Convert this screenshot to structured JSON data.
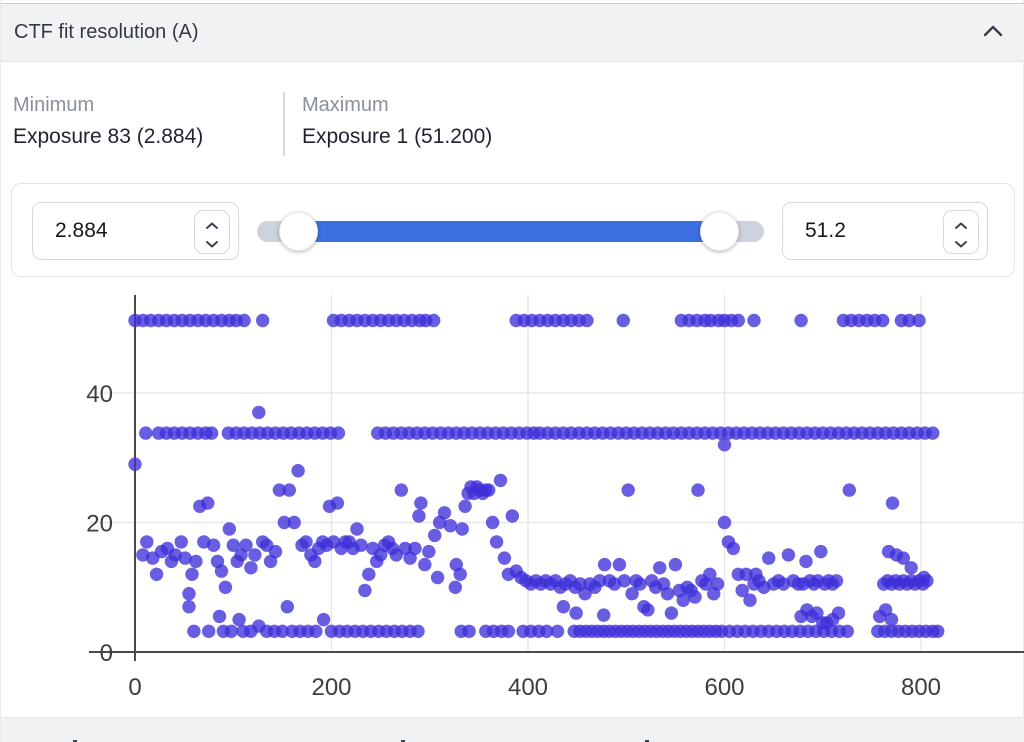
{
  "panel": {
    "title": "CTF fit resolution (A)",
    "collapse_icon": "chevron-up-icon"
  },
  "stats": {
    "min_label": "Minimum",
    "min_value": "Exposure 83 (2.884)",
    "max_label": "Maximum",
    "max_value": "Exposure 1 (51.200)"
  },
  "slider": {
    "min_input": "2.884",
    "max_input": "51.2"
  },
  "colors": {
    "accent_blue": "#3d6fe3",
    "marker": "#3f30d8",
    "header_bg": "#f1f2f4",
    "axis": "#4a4a4a",
    "gridline": "#e7e8ea"
  },
  "chart_data": {
    "type": "scatter",
    "title": "",
    "xlabel": "",
    "ylabel": "",
    "x_ticks": [
      0,
      200,
      400,
      600,
      800
    ],
    "y_ticks": [
      0,
      20,
      40
    ],
    "xlim": [
      -45,
      905
    ],
    "ylim": [
      0,
      55
    ],
    "grid": true,
    "marker_color": "#3f30d8",
    "marker_opacity": 0.78,
    "top_row_y": 51.2,
    "top_row_x": [
      0,
      8,
      16,
      24,
      32,
      40,
      48,
      56,
      64,
      72,
      80,
      88,
      96,
      103,
      111,
      130,
      202,
      210,
      218,
      226,
      234,
      242,
      250,
      258,
      266,
      274,
      282,
      290,
      296,
      304,
      388,
      396,
      404,
      412,
      420,
      428,
      436,
      444,
      452,
      460,
      497,
      556,
      564,
      572,
      580,
      586,
      594,
      600,
      607,
      614,
      630,
      678,
      721,
      729,
      737,
      745,
      753,
      761,
      780,
      788,
      798
    ],
    "mid_row_y": 33.8,
    "mid_row_x": [
      11,
      24,
      32,
      40,
      48,
      56,
      64,
      72,
      78,
      95,
      103,
      111,
      119,
      127,
      135,
      143,
      151,
      159,
      167,
      175,
      183,
      191,
      199,
      207,
      247,
      255,
      263,
      271,
      279,
      287,
      295,
      303,
      311,
      319,
      327,
      335,
      343,
      351,
      359,
      367,
      375,
      383,
      391,
      399,
      406,
      412,
      420,
      428,
      436,
      444,
      452,
      460,
      468,
      476,
      484,
      492,
      500,
      508,
      516,
      524,
      532,
      540,
      548,
      556,
      564,
      572,
      580,
      588,
      596,
      604,
      612,
      620,
      628,
      636,
      644,
      652,
      660,
      668,
      676,
      684,
      692,
      700,
      708,
      716,
      724,
      732,
      740,
      748,
      756,
      764,
      772,
      780,
      788,
      796,
      804,
      812
    ],
    "points": [
      [
        0,
        29
      ],
      [
        126,
        37
      ],
      [
        600,
        32
      ],
      [
        8,
        15
      ],
      [
        12,
        17
      ],
      [
        18,
        14.5
      ],
      [
        22,
        12
      ],
      [
        27,
        15.5
      ],
      [
        33,
        16
      ],
      [
        37,
        14
      ],
      [
        41,
        15
      ],
      [
        47,
        17
      ],
      [
        51,
        14.5
      ],
      [
        55,
        9
      ],
      [
        58,
        12
      ],
      [
        62,
        14
      ],
      [
        66,
        22.5
      ],
      [
        70,
        17
      ],
      [
        74,
        23
      ],
      [
        80,
        16.5
      ],
      [
        84,
        14
      ],
      [
        88,
        12.5
      ],
      [
        92,
        10
      ],
      [
        96,
        19
      ],
      [
        100,
        16.5
      ],
      [
        104,
        14
      ],
      [
        108,
        15
      ],
      [
        113,
        16.5
      ],
      [
        118,
        13
      ],
      [
        122,
        15
      ],
      [
        130,
        17
      ],
      [
        134,
        16.5
      ],
      [
        138,
        14
      ],
      [
        143,
        15.5
      ],
      [
        147,
        25
      ],
      [
        152,
        20
      ],
      [
        157,
        25
      ],
      [
        162,
        20
      ],
      [
        166,
        28
      ],
      [
        170,
        16.5
      ],
      [
        174,
        17
      ],
      [
        179,
        15
      ],
      [
        183,
        14
      ],
      [
        187,
        16
      ],
      [
        191,
        17
      ],
      [
        195,
        16.5
      ],
      [
        198,
        22.5
      ],
      [
        202,
        17
      ],
      [
        206,
        23
      ],
      [
        210,
        16
      ],
      [
        214,
        17
      ],
      [
        218,
        17
      ],
      [
        222,
        16
      ],
      [
        226,
        19
      ],
      [
        230,
        16.5
      ],
      [
        234,
        9.5
      ],
      [
        238,
        12
      ],
      [
        242,
        16
      ],
      [
        246,
        14
      ],
      [
        250,
        15
      ],
      [
        254,
        16.5
      ],
      [
        258,
        17
      ],
      [
        262,
        16
      ],
      [
        266,
        15
      ],
      [
        271,
        25
      ],
      [
        275,
        16
      ],
      [
        280,
        14.5
      ],
      [
        285,
        16
      ],
      [
        289,
        21
      ],
      [
        55,
        7
      ],
      [
        60,
        3.2
      ],
      [
        75,
        3.2
      ],
      [
        86,
        5.5
      ],
      [
        90,
        3.2
      ],
      [
        98,
        3.2
      ],
      [
        106,
        5
      ],
      [
        110,
        3.2
      ],
      [
        118,
        3.2
      ],
      [
        126,
        4
      ],
      [
        134,
        3.2
      ],
      [
        142,
        3.2
      ],
      [
        150,
        3.2
      ],
      [
        155,
        7
      ],
      [
        160,
        3.2
      ],
      [
        168,
        3.2
      ],
      [
        176,
        3.2
      ],
      [
        184,
        3.2
      ],
      [
        192,
        5
      ],
      [
        200,
        3.2
      ],
      [
        208,
        3.2
      ],
      [
        216,
        3.2
      ],
      [
        224,
        3.2
      ],
      [
        232,
        3.2
      ],
      [
        240,
        3.2
      ],
      [
        248,
        3.2
      ],
      [
        256,
        3.2
      ],
      [
        264,
        3.2
      ],
      [
        272,
        3.2
      ],
      [
        280,
        3.2
      ],
      [
        288,
        3.2
      ],
      [
        291,
        23
      ],
      [
        295,
        13.5
      ],
      [
        299,
        15.5
      ],
      [
        305,
        18
      ],
      [
        308,
        11.5
      ],
      [
        310,
        20
      ],
      [
        315,
        21.5
      ],
      [
        321,
        19.5
      ],
      [
        326,
        10
      ],
      [
        327,
        13.5
      ],
      [
        331,
        12
      ],
      [
        333,
        19
      ],
      [
        336,
        22.5
      ],
      [
        339,
        24.5
      ],
      [
        342,
        25.5
      ],
      [
        345,
        24.5
      ],
      [
        348,
        25.5
      ],
      [
        351,
        25
      ],
      [
        354,
        24.5
      ],
      [
        357,
        25
      ],
      [
        360,
        25
      ],
      [
        364,
        20
      ],
      [
        368,
        17
      ],
      [
        372,
        26.5
      ],
      [
        376,
        14.5
      ],
      [
        380,
        12
      ],
      [
        384,
        21
      ],
      [
        388,
        12.5
      ],
      [
        393,
        11.5
      ],
      [
        398,
        11
      ],
      [
        403,
        10.5
      ],
      [
        408,
        11
      ],
      [
        413,
        10.5
      ],
      [
        418,
        11
      ],
      [
        423,
        10.5
      ],
      [
        428,
        11
      ],
      [
        433,
        10
      ],
      [
        436,
        7
      ],
      [
        438,
        10.5
      ],
      [
        443,
        11
      ],
      [
        448,
        10
      ],
      [
        449,
        6
      ],
      [
        453,
        10.5
      ],
      [
        458,
        9
      ],
      [
        463,
        10.5
      ],
      [
        468,
        10
      ],
      [
        473,
        11
      ],
      [
        477,
        5.7
      ],
      [
        478,
        13.5
      ],
      [
        483,
        11
      ],
      [
        488,
        10.5
      ],
      [
        493,
        13.5
      ],
      [
        498,
        11
      ],
      [
        502,
        25
      ],
      [
        506,
        9
      ],
      [
        510,
        11
      ],
      [
        514,
        10.5
      ],
      [
        518,
        7
      ],
      [
        522,
        6.5
      ],
      [
        526,
        11
      ],
      [
        530,
        10
      ],
      [
        534,
        13
      ],
      [
        538,
        10.5
      ],
      [
        542,
        9
      ],
      [
        546,
        6
      ],
      [
        550,
        13.5
      ],
      [
        554,
        9.5
      ],
      [
        558,
        8
      ],
      [
        562,
        10
      ],
      [
        566,
        9.5
      ],
      [
        570,
        8.5
      ],
      [
        573,
        25
      ],
      [
        577,
        11
      ],
      [
        581,
        10.5
      ],
      [
        585,
        12
      ],
      [
        589,
        9
      ],
      [
        593,
        10.5
      ],
      [
        332,
        3.2
      ],
      [
        340,
        3.2
      ],
      [
        357,
        3.2
      ],
      [
        365,
        3.2
      ],
      [
        373,
        3.2
      ],
      [
        380,
        3.2
      ],
      [
        395,
        3.2
      ],
      [
        403,
        3.2
      ],
      [
        411,
        3.2
      ],
      [
        419,
        3.2
      ],
      [
        430,
        3.2
      ],
      [
        447,
        3.2
      ],
      [
        453,
        3.2
      ],
      [
        459,
        3.2
      ],
      [
        465,
        3.2
      ],
      [
        471,
        3.2
      ],
      [
        477,
        3.2
      ],
      [
        483,
        3.2
      ],
      [
        489,
        3.2
      ],
      [
        495,
        3.2
      ],
      [
        501,
        3.2
      ],
      [
        507,
        3.2
      ],
      [
        513,
        3.2
      ],
      [
        519,
        3.2
      ],
      [
        525,
        3.2
      ],
      [
        531,
        3.2
      ],
      [
        537,
        3.2
      ],
      [
        543,
        3.2
      ],
      [
        549,
        3.2
      ],
      [
        555,
        3.2
      ],
      [
        561,
        3.2
      ],
      [
        567,
        3.2
      ],
      [
        573,
        3.2
      ],
      [
        579,
        3.2
      ],
      [
        585,
        3.2
      ],
      [
        591,
        3.2
      ],
      [
        597,
        3.2
      ],
      [
        600,
        20
      ],
      [
        604,
        17
      ],
      [
        609,
        16
      ],
      [
        614,
        12
      ],
      [
        618,
        9.5
      ],
      [
        622,
        12
      ],
      [
        626,
        8
      ],
      [
        632,
        12
      ],
      [
        630,
        10.5
      ],
      [
        635,
        11
      ],
      [
        640,
        10
      ],
      [
        645,
        14.5
      ],
      [
        650,
        10.5
      ],
      [
        655,
        11
      ],
      [
        660,
        10.5
      ],
      [
        665,
        15
      ],
      [
        670,
        11
      ],
      [
        675,
        10.5
      ],
      [
        680,
        10.5
      ],
      [
        683,
        14
      ],
      [
        687,
        11
      ],
      [
        691,
        10.5
      ],
      [
        695,
        11
      ],
      [
        698,
        15.5
      ],
      [
        702,
        10.5
      ],
      [
        706,
        11
      ],
      [
        710,
        10.5
      ],
      [
        714,
        11
      ],
      [
        678,
        5.5
      ],
      [
        684,
        6.5
      ],
      [
        689,
        5.5
      ],
      [
        694,
        6
      ],
      [
        700,
        4.5
      ],
      [
        727,
        25
      ],
      [
        771,
        23
      ],
      [
        767,
        15.5
      ],
      [
        775,
        15
      ],
      [
        782,
        14.5
      ],
      [
        790,
        13
      ],
      [
        803,
        11.5
      ],
      [
        762,
        10.5
      ],
      [
        766,
        11
      ],
      [
        770,
        10.5
      ],
      [
        774,
        11
      ],
      [
        778,
        10.5
      ],
      [
        782,
        11
      ],
      [
        786,
        10.5
      ],
      [
        790,
        11
      ],
      [
        794,
        10.5
      ],
      [
        798,
        11
      ],
      [
        802,
        10.5
      ],
      [
        806,
        11
      ],
      [
        605,
        3.2
      ],
      [
        613,
        3.2
      ],
      [
        621,
        3.2
      ],
      [
        629,
        3.2
      ],
      [
        637,
        3.2
      ],
      [
        645,
        3.2
      ],
      [
        653,
        3.2
      ],
      [
        661,
        3.2
      ],
      [
        669,
        3.2
      ],
      [
        677,
        3.2
      ],
      [
        685,
        3.2
      ],
      [
        693,
        3.2
      ],
      [
        701,
        3.2
      ],
      [
        709,
        3.2
      ],
      [
        717,
        3.2
      ],
      [
        725,
        3.2
      ],
      [
        704,
        4.5
      ],
      [
        710,
        5
      ],
      [
        716,
        6
      ],
      [
        756,
        3.2
      ],
      [
        763,
        3.2
      ],
      [
        770,
        3.2
      ],
      [
        777,
        3.2
      ],
      [
        784,
        3.2
      ],
      [
        791,
        3.2
      ],
      [
        798,
        3.2
      ],
      [
        805,
        3.2
      ],
      [
        812,
        3.2
      ],
      [
        817,
        3.2
      ],
      [
        758,
        5.5
      ],
      [
        764,
        6.5
      ],
      [
        770,
        5
      ]
    ]
  }
}
